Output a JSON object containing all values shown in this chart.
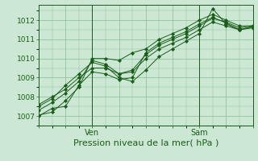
{
  "title": "",
  "xlabel": "Pression niveau de la mer( hPa )",
  "bg_color": "#cce8d4",
  "grid_color": "#88bb99",
  "line_color": "#1a5c1a",
  "marker_color": "#1a5c1a",
  "ylim": [
    1006.5,
    1012.8
  ],
  "xlim": [
    0,
    48
  ],
  "ven_x": 12,
  "sam_x": 36,
  "series": [
    [
      0,
      1007.05,
      3,
      1007.2,
      6,
      1007.8,
      9,
      1008.5,
      12,
      1010.0,
      15,
      1010.0,
      18,
      1009.9,
      21,
      1010.3,
      24,
      1010.5,
      27,
      1011.0,
      30,
      1011.3,
      33,
      1011.6,
      36,
      1012.0,
      39,
      1012.3,
      42,
      1012.0,
      45,
      1011.7,
      48,
      1011.7
    ],
    [
      0,
      1007.6,
      3,
      1008.0,
      6,
      1008.4,
      9,
      1009.0,
      12,
      1009.5,
      15,
      1009.5,
      18,
      1009.2,
      21,
      1009.3,
      24,
      1010.0,
      27,
      1010.5,
      30,
      1010.8,
      33,
      1011.1,
      36,
      1011.5,
      39,
      1011.9,
      42,
      1011.7,
      45,
      1011.5,
      48,
      1011.6
    ],
    [
      0,
      1007.5,
      3,
      1007.9,
      6,
      1008.6,
      9,
      1009.2,
      12,
      1009.8,
      15,
      1009.6,
      18,
      1009.0,
      21,
      1008.8,
      24,
      1009.4,
      27,
      1010.1,
      30,
      1010.5,
      33,
      1010.9,
      36,
      1011.3,
      39,
      1012.6,
      42,
      1011.8,
      45,
      1011.5,
      48,
      1011.65
    ],
    [
      0,
      1007.3,
      3,
      1007.7,
      6,
      1008.2,
      9,
      1008.8,
      12,
      1009.9,
      15,
      1009.7,
      18,
      1009.2,
      21,
      1009.4,
      24,
      1010.2,
      27,
      1010.7,
      30,
      1011.0,
      33,
      1011.3,
      36,
      1011.7,
      39,
      1012.1,
      42,
      1011.9,
      45,
      1011.6,
      48,
      1011.72
    ],
    [
      0,
      1007.0,
      3,
      1007.4,
      6,
      1007.5,
      9,
      1008.6,
      12,
      1009.3,
      15,
      1009.2,
      18,
      1008.9,
      21,
      1009.0,
      24,
      1010.3,
      27,
      1010.8,
      30,
      1011.1,
      33,
      1011.4,
      36,
      1011.8,
      39,
      1012.15,
      42,
      1011.85,
      45,
      1011.5,
      48,
      1011.68
    ]
  ],
  "yticks": [
    1007,
    1008,
    1009,
    1010,
    1011,
    1012
  ],
  "ytick_fontsize": 6.5,
  "xtick_fontsize": 7,
  "xlabel_fontsize": 8
}
